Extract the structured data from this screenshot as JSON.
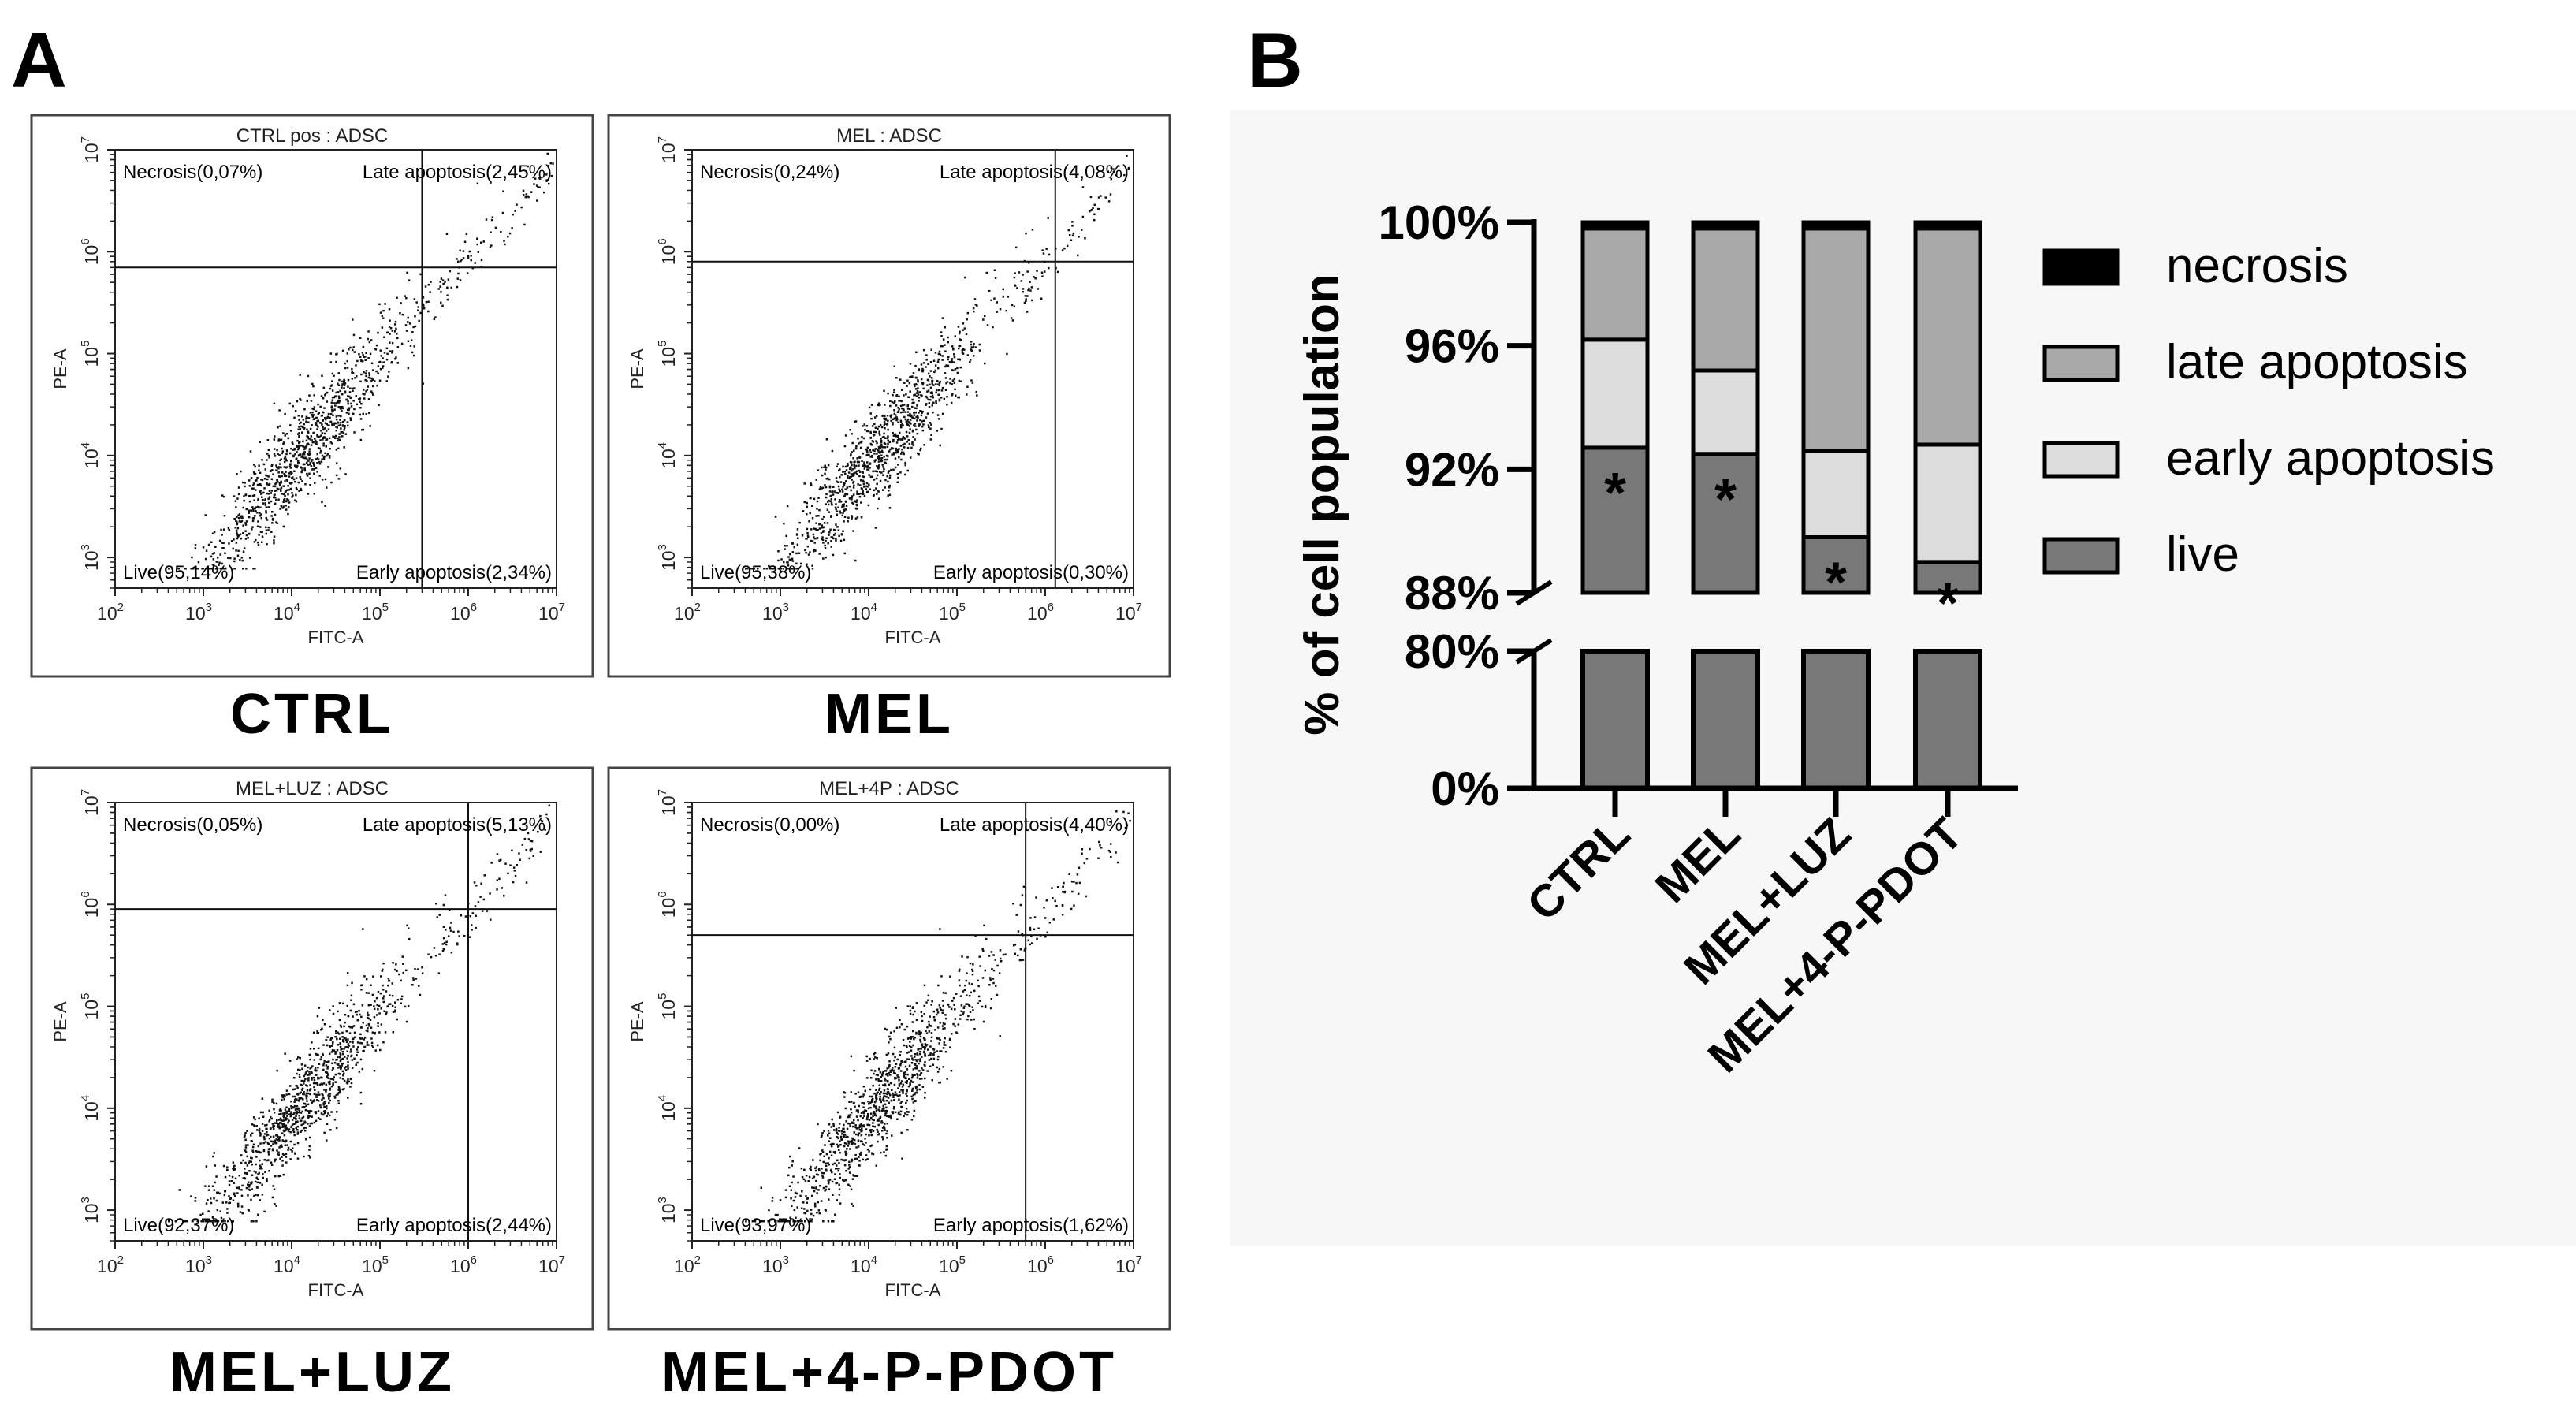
{
  "panel_a": {
    "letter": "A",
    "x_axis_label": "FITC-A",
    "y_axis_label": "PE-A",
    "x_tick_exponents": [
      "2",
      "3",
      "4",
      "5",
      "6",
      "7"
    ],
    "y_tick_exponents": [
      "3",
      "4",
      "5",
      "6",
      "7"
    ],
    "tick_base": "10",
    "plots": [
      {
        "title": "CTRL pos : ADSC",
        "condition": "CTRL",
        "necrosis": "Necrosis(0,07%)",
        "late": "Late apoptosis(2,45%)",
        "live": "Live(95,14%)",
        "early": "Early apoptosis(2,34%)"
      },
      {
        "title": "MEL : ADSC",
        "condition": "MEL",
        "necrosis": "Necrosis(0,24%)",
        "late": "Late apoptosis(4,08%)",
        "live": "Live(95,38%)",
        "early": "Early apoptosis(0,30%)"
      },
      {
        "title": "MEL+LUZ : ADSC",
        "condition": "MEL+LUZ",
        "necrosis": "Necrosis(0,05%)",
        "late": "Late apoptosis(5,13%)",
        "live": "Live(92,37%)",
        "early": "Early apoptosis(2,44%)"
      },
      {
        "title": "MEL+4P : ADSC",
        "condition": "MEL+4-P-PDOT",
        "necrosis": "Necrosis(0,00%)",
        "late": "Late apoptosis(4,40%)",
        "live": "Live(93,97%)",
        "early": "Early apoptosis(1,62%)"
      }
    ]
  },
  "panel_b": {
    "letter": "B",
    "legend": [
      "necrosis",
      "late apoptosis",
      "early apoptosis",
      "live"
    ],
    "significance_marker": "*"
  },
  "colors": {
    "necrosis": "#000000",
    "late": "#a9a9a9",
    "early": "#dcdcdc",
    "live": "#787878",
    "panel_b_background": "#f7f7f7"
  },
  "chart_data": [
    {
      "type": "scatter",
      "title": "CTRL pos : ADSC",
      "xlabel": "FITC-A",
      "ylabel": "PE-A",
      "xscale": "log",
      "yscale": "log",
      "xlim": [
        100,
        10000000
      ],
      "ylim": [
        500,
        10000000
      ],
      "gate": {
        "x": 300000,
        "y": 700000
      },
      "quadrant_percentages": {
        "necrosis": 0.07,
        "late_apoptosis": 2.45,
        "live": 95.14,
        "early_apoptosis": 2.34
      }
    },
    {
      "type": "scatter",
      "title": "MEL : ADSC",
      "xlabel": "FITC-A",
      "ylabel": "PE-A",
      "xscale": "log",
      "yscale": "log",
      "xlim": [
        100,
        10000000
      ],
      "ylim": [
        500,
        10000000
      ],
      "gate": {
        "x": 1300000,
        "y": 800000
      },
      "quadrant_percentages": {
        "necrosis": 0.24,
        "late_apoptosis": 4.08,
        "live": 95.38,
        "early_apoptosis": 0.3
      }
    },
    {
      "type": "scatter",
      "title": "MEL+LUZ : ADSC",
      "xlabel": "FITC-A",
      "ylabel": "PE-A",
      "xscale": "log",
      "yscale": "log",
      "xlim": [
        100,
        10000000
      ],
      "ylim": [
        500,
        10000000
      ],
      "gate": {
        "x": 1000000,
        "y": 900000
      },
      "quadrant_percentages": {
        "necrosis": 0.05,
        "late_apoptosis": 5.13,
        "live": 92.37,
        "early_apoptosis": 2.44
      }
    },
    {
      "type": "scatter",
      "title": "MEL+4P : ADSC",
      "xlabel": "FITC-A",
      "ylabel": "PE-A",
      "xscale": "log",
      "yscale": "log",
      "xlim": [
        100,
        10000000
      ],
      "ylim": [
        500,
        10000000
      ],
      "gate": {
        "x": 600000,
        "y": 500000
      },
      "quadrant_percentages": {
        "necrosis": 0.0,
        "late_apoptosis": 4.4,
        "live": 93.97,
        "early_apoptosis": 1.62
      }
    },
    {
      "type": "bar",
      "stacked": true,
      "title": "",
      "xlabel": "",
      "ylabel": "% of cell population",
      "categories": [
        "CTRL",
        "MEL",
        "MEL+LUZ",
        "MEL+4-P-PDOT"
      ],
      "series": [
        {
          "name": "live",
          "values": [
            92.7,
            92.5,
            89.8,
            89.0
          ]
        },
        {
          "name": "early apoptosis",
          "values": [
            3.5,
            2.7,
            2.8,
            3.8
          ]
        },
        {
          "name": "late apoptosis",
          "values": [
            3.6,
            4.6,
            7.2,
            7.0
          ]
        },
        {
          "name": "necrosis",
          "values": [
            0.2,
            0.2,
            0.2,
            0.2
          ]
        }
      ],
      "broken_axis": {
        "lower_ticks": [
          "0%",
          "80%"
        ],
        "upper_ticks": [
          "88%",
          "92%",
          "96%",
          "100%"
        ],
        "upper_range": [
          88,
          100
        ]
      },
      "significant": [
        true,
        true,
        true,
        true
      ]
    }
  ]
}
